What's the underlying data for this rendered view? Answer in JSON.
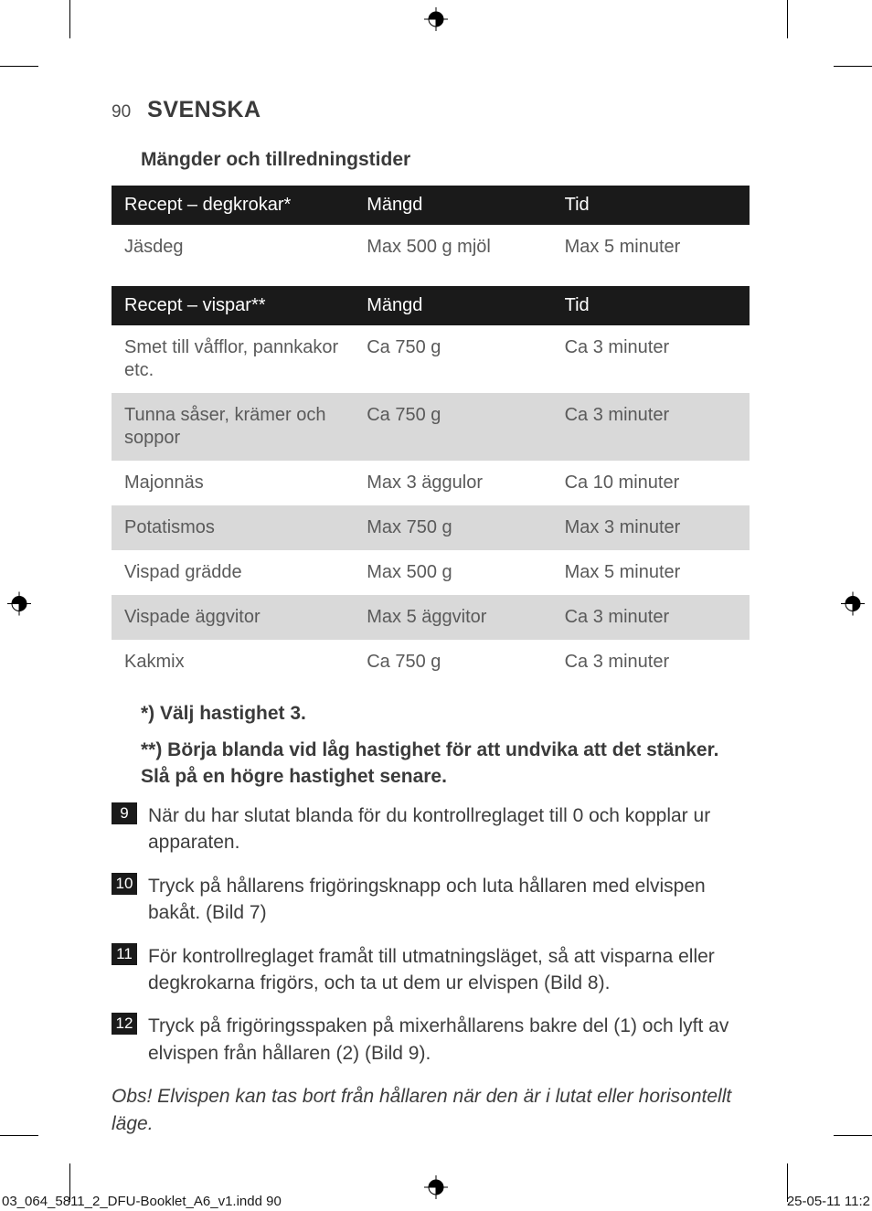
{
  "page_number": "90",
  "language_header": "SVENSKA",
  "section_title": "Mängder och tillredningstider",
  "table1": {
    "columns": [
      "Recept – degkrokar*",
      "Mängd",
      "Tid"
    ],
    "rows": [
      {
        "c1": "Jäsdeg",
        "c2": "Max 500 g mjöl",
        "c3": "Max 5 minuter",
        "alt": false
      }
    ]
  },
  "table2": {
    "columns": [
      "Recept – vispar**",
      "Mängd",
      "Tid"
    ],
    "rows": [
      {
        "c1": "Smet till våfflor, pannkakor etc.",
        "c2": "Ca 750 g",
        "c3": "Ca 3 minuter",
        "alt": false
      },
      {
        "c1": "Tunna såser, krämer och soppor",
        "c2": "Ca 750 g",
        "c3": "Ca 3 minuter",
        "alt": true
      },
      {
        "c1": "Majonnäs",
        "c2": "Max 3 äggulor",
        "c3": "Ca 10 minuter",
        "alt": false
      },
      {
        "c1": "Potatismos",
        "c2": "Max 750 g",
        "c3": "Max 3 minuter",
        "alt": true
      },
      {
        "c1": "Vispad grädde",
        "c2": "Max 500 g",
        "c3": "Max 5 minuter",
        "alt": false
      },
      {
        "c1": "Vispade äggvitor",
        "c2": "Max 5 äggvitor",
        "c3": "Ca 3 minuter",
        "alt": true
      },
      {
        "c1": "Kakmix",
        "c2": "Ca 750 g",
        "c3": "Ca 3 minuter",
        "alt": false
      }
    ]
  },
  "footnote_1": "*) Välj hastighet 3.",
  "footnote_2": "**) Börja blanda vid låg hastighet för att undvika att det stänker. Slå på en högre hastighet senare.",
  "steps": [
    {
      "n": "9",
      "t": "När du har slutat blanda för du kontrollreglaget till 0 och kopplar ur apparaten."
    },
    {
      "n": "10",
      "t": "Tryck på hållarens frigöringsknapp och luta hållaren med elvispen bakåt.  (Bild 7)"
    },
    {
      "n": "11",
      "t": "För kontrollreglaget framåt till utmatningsläget, så att visparna eller degkrokarna frigörs, och ta ut dem ur elvispen (Bild 8)."
    },
    {
      "n": "12",
      "t": "Tryck på frigöringsspaken på mixerhållarens bakre del (1) och lyft av elvispen från hållaren (2) (Bild 9)."
    }
  ],
  "obs_note": "Obs! Elvispen kan tas bort från hållaren när den är i lutat eller horisontellt läge.",
  "footer_left": "03_064_5811_2_DFU-Booklet_A6_v1.indd   90",
  "footer_right": "25-05-11   11:2",
  "colors": {
    "table_header_bg": "#1a1a1a",
    "table_header_fg": "#ffffff",
    "row_alt_bg": "#d9d9d9",
    "text": "#3d3d3d",
    "muted_text": "#5a5a5a"
  }
}
